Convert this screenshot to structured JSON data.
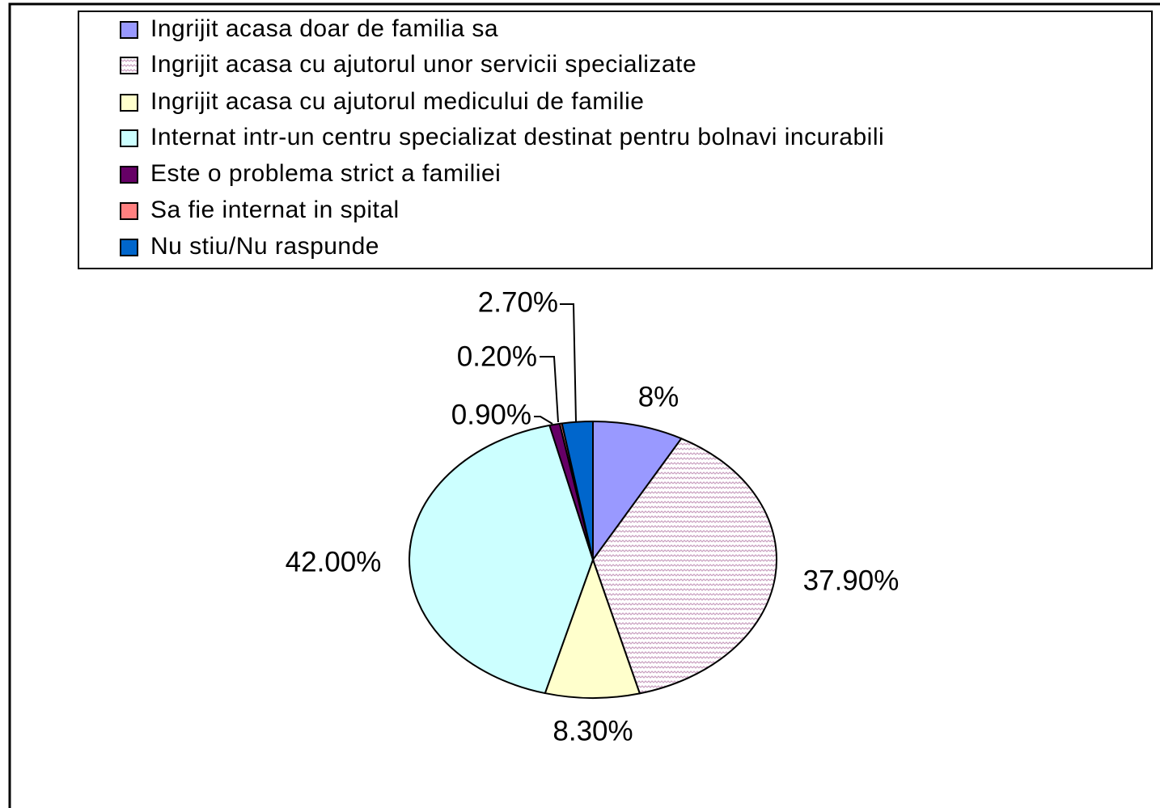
{
  "chart_data": {
    "type": "pie",
    "categories": [
      "Ingrijit acasa doar de familia sa",
      "Ingrijit acasa cu ajutorul unor servicii specializate",
      "Ingrijit acasa cu ajutorul medicului de familie",
      "Internat intr-un centru specializat destinat pentru bolnavi incurabili",
      "Este o problema strict a familiei",
      "Sa fie internat in spital",
      "Nu stiu/Nu raspunde"
    ],
    "values": [
      8,
      37.9,
      8.3,
      42,
      0.9,
      0.2,
      2.7
    ],
    "value_labels": [
      "8%",
      "37.90%",
      "8.30%",
      "42.00%",
      "0.90%",
      "0.20%",
      "2.70%"
    ],
    "colors": [
      "#9999ff",
      "#c9a0c0",
      "#ffffcc",
      "#ccffff",
      "#660066",
      "#ff8080",
      "#0066cc"
    ],
    "patterns": [
      null,
      "zigzag",
      null,
      null,
      null,
      null,
      null
    ],
    "legend": "top"
  }
}
